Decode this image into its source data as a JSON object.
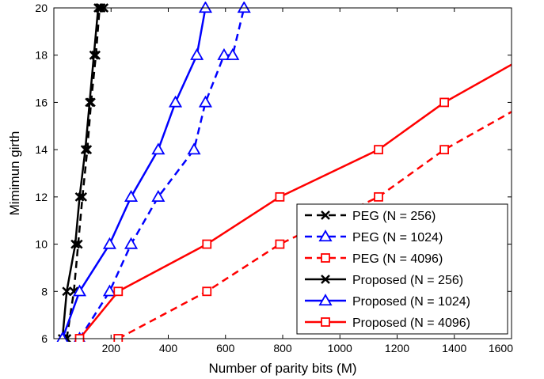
{
  "chart_data": {
    "type": "line",
    "title": "",
    "xlabel": "Number of parity bits (M)",
    "ylabel": "Mimimun girth",
    "xlim": [
      0,
      1600
    ],
    "ylim": [
      6,
      20
    ],
    "xticks": [
      200,
      400,
      600,
      800,
      1000,
      1200,
      1400,
      1600
    ],
    "yticks": [
      6,
      8,
      10,
      12,
      14,
      16,
      18,
      20
    ],
    "grid": false,
    "legend_position": "bottom-right",
    "series": [
      {
        "name": "PEG (N = 256)",
        "color": "#000000",
        "dash": "dashed",
        "marker": "x",
        "x": [
          45,
          70,
          85,
          100,
          117,
          130,
          147,
          160,
          175
        ],
        "y": [
          6,
          8,
          10,
          12,
          14,
          16,
          18,
          20,
          20
        ]
      },
      {
        "name": "PEG (N = 1024)",
        "color": "#0000ff",
        "dash": "dashed",
        "marker": "triangle",
        "x": [
          90,
          195,
          270,
          365,
          490,
          530,
          595,
          625,
          665
        ],
        "y": [
          6,
          8,
          10,
          12,
          14,
          16,
          18,
          18,
          20
        ]
      },
      {
        "name": "PEG (N = 4096)",
        "color": "#ff0000",
        "dash": "dashed",
        "marker": "square",
        "x": [
          225,
          535,
          790,
          1135,
          1365,
          1600
        ],
        "y": [
          6,
          8,
          10,
          12,
          14,
          15.6
        ]
      },
      {
        "name": "Proposed (N = 256)",
        "color": "#000000",
        "dash": "solid",
        "marker": "x",
        "x": [
          30,
          45,
          75,
          90,
          110,
          125,
          140,
          155,
          165
        ],
        "y": [
          6,
          8,
          10,
          12,
          14,
          16,
          18,
          20,
          20
        ]
      },
      {
        "name": "Proposed (N = 1024)",
        "color": "#0000ff",
        "dash": "solid",
        "marker": "triangle",
        "x": [
          30,
          90,
          195,
          270,
          365,
          425,
          500,
          530
        ],
        "y": [
          6,
          8,
          10,
          12,
          14,
          16,
          18,
          20
        ]
      },
      {
        "name": "Proposed (N = 4096)",
        "color": "#ff0000",
        "dash": "solid",
        "marker": "square",
        "x": [
          90,
          225,
          535,
          790,
          1135,
          1365,
          1600
        ],
        "y": [
          6,
          8,
          10,
          12,
          14,
          16,
          17.6
        ]
      }
    ]
  }
}
